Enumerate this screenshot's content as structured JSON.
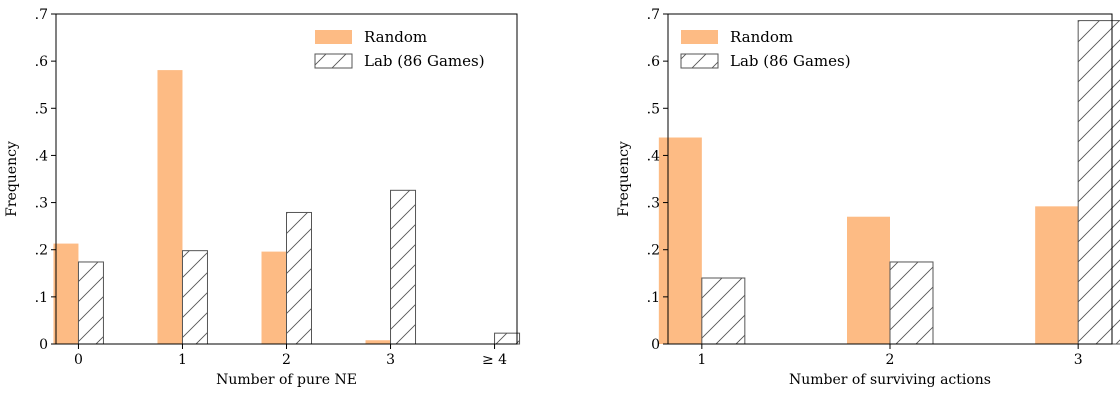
{
  "chart_data": [
    {
      "type": "bar",
      "xlabel": "Number of pure NE",
      "ylabel": "Frequency",
      "categories": [
        "0",
        "1",
        "2",
        "3",
        "≥ 4"
      ],
      "ylim": [
        0,
        0.7
      ],
      "yticks": [
        0,
        0.1,
        0.2,
        0.3,
        0.4,
        0.5,
        0.6,
        0.7
      ],
      "ytick_labels": [
        "0",
        ".1",
        ".2",
        ".3",
        ".4",
        ".5",
        ".6",
        ".7"
      ],
      "legend_position": "top-right",
      "series": [
        {
          "name": "Random",
          "values": [
            0.213,
            0.581,
            0.196,
            0.008,
            0.0
          ],
          "style": "solid",
          "color": "#FDBB84"
        },
        {
          "name": "Lab (86 Games)",
          "values": [
            0.174,
            0.198,
            0.279,
            0.326,
            0.023
          ],
          "style": "hatched",
          "color": "#FFFFFF"
        }
      ]
    },
    {
      "type": "bar",
      "xlabel": "Number of surviving actions",
      "ylabel": "Frequency",
      "categories": [
        "1",
        "2",
        "3"
      ],
      "ylim": [
        0,
        0.7
      ],
      "yticks": [
        0,
        0.1,
        0.2,
        0.3,
        0.4,
        0.5,
        0.6,
        0.7
      ],
      "ytick_labels": [
        "0",
        ".1",
        ".2",
        ".3",
        ".4",
        ".5",
        ".6",
        ".7"
      ],
      "legend_position": "top-left",
      "series": [
        {
          "name": "Random",
          "values": [
            0.438,
            0.27,
            0.292
          ],
          "style": "solid",
          "color": "#FDBB84"
        },
        {
          "name": "Lab (86 Games)",
          "values": [
            0.14,
            0.174,
            0.686
          ],
          "style": "hatched",
          "color": "#FFFFFF"
        }
      ]
    }
  ]
}
